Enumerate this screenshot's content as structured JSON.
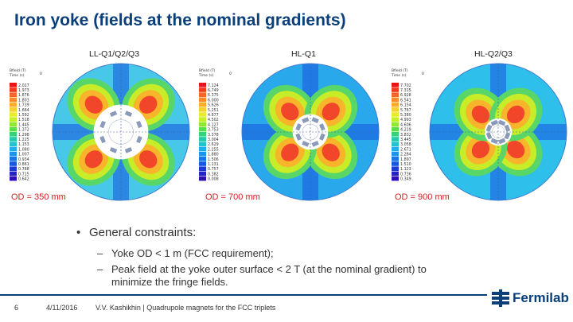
{
  "slide": {
    "title": "Iron yoke (fields at the nominal gradients)",
    "panels": [
      {
        "label": "LL-Q1/Q2/Q3",
        "od_label": "OD = 350 mm",
        "legend_header": [
          "Bfield (T)",
          "Time (s)",
          "0"
        ],
        "legend_values": [
          "2.027",
          "1.973",
          "1.876",
          "1.803",
          "1.739",
          "1.664",
          "1.592",
          "1.518",
          "1.445",
          "1.372",
          "1.298",
          "1.225",
          "1.153",
          "1.080",
          "1.007",
          "0.934",
          "0.861",
          "0.788",
          "0.715",
          "0.642"
        ]
      },
      {
        "label": "HL-Q1",
        "od_label": "OD = 700 mm",
        "legend_header": [
          "Bfield (T)",
          "Time (s)",
          "0"
        ],
        "legend_values": [
          "7.124",
          "6.749",
          "6.375",
          "6.000",
          "5.626",
          "5.251",
          "4.877",
          "4.502",
          "4.127",
          "3.753",
          "3.378",
          "3.004",
          "2.629",
          "2.255",
          "1.880",
          "1.506",
          "1.131",
          "0.757",
          "0.382",
          "0.008"
        ]
      },
      {
        "label": "HL-Q2/Q3",
        "od_label": "OD = 900 mm",
        "legend_header": [
          "Bfield (T)",
          "Time (s)",
          "0"
        ],
        "legend_values": [
          "7.702",
          "7.315",
          "6.928",
          "6.541",
          "6.154",
          "5.767",
          "5.380",
          "4.993",
          "4.606",
          "4.219",
          "3.832",
          "3.445",
          "3.058",
          "2.671",
          "2.284",
          "1.897",
          "1.510",
          "1.123",
          "0.736",
          "0.349"
        ]
      }
    ],
    "legend_colors": [
      "#e8141a",
      "#f23a1e",
      "#f8642a",
      "#fb8c2c",
      "#fcae2a",
      "#f7d22a",
      "#e8ec2a",
      "#c4f024",
      "#8ee82e",
      "#5cdc48",
      "#34d27a",
      "#22caa8",
      "#22c2d0",
      "#1fb0ea",
      "#1a94ee",
      "#1874e8",
      "#1656e0",
      "#1a3ad4",
      "#2424c4",
      "#3010b0"
    ],
    "bullet_main": "General constraints:",
    "bullet_subs": [
      {
        "line1": "Yoke OD < 1 m (FCC requirement);",
        "line2": ""
      },
      {
        "line1": "Peak field at the yoke outer surface < 2 T (at the nominal gradient) to",
        "line2": "minimize the fringe fields."
      }
    ],
    "footer": {
      "page_number": "6",
      "date": "4/11/2016",
      "author": "V.V. Kashikhin | Quadrupole magnets for the FCC triplets",
      "logo": "Fermilab",
      "accent": "#0a3f7a"
    }
  }
}
